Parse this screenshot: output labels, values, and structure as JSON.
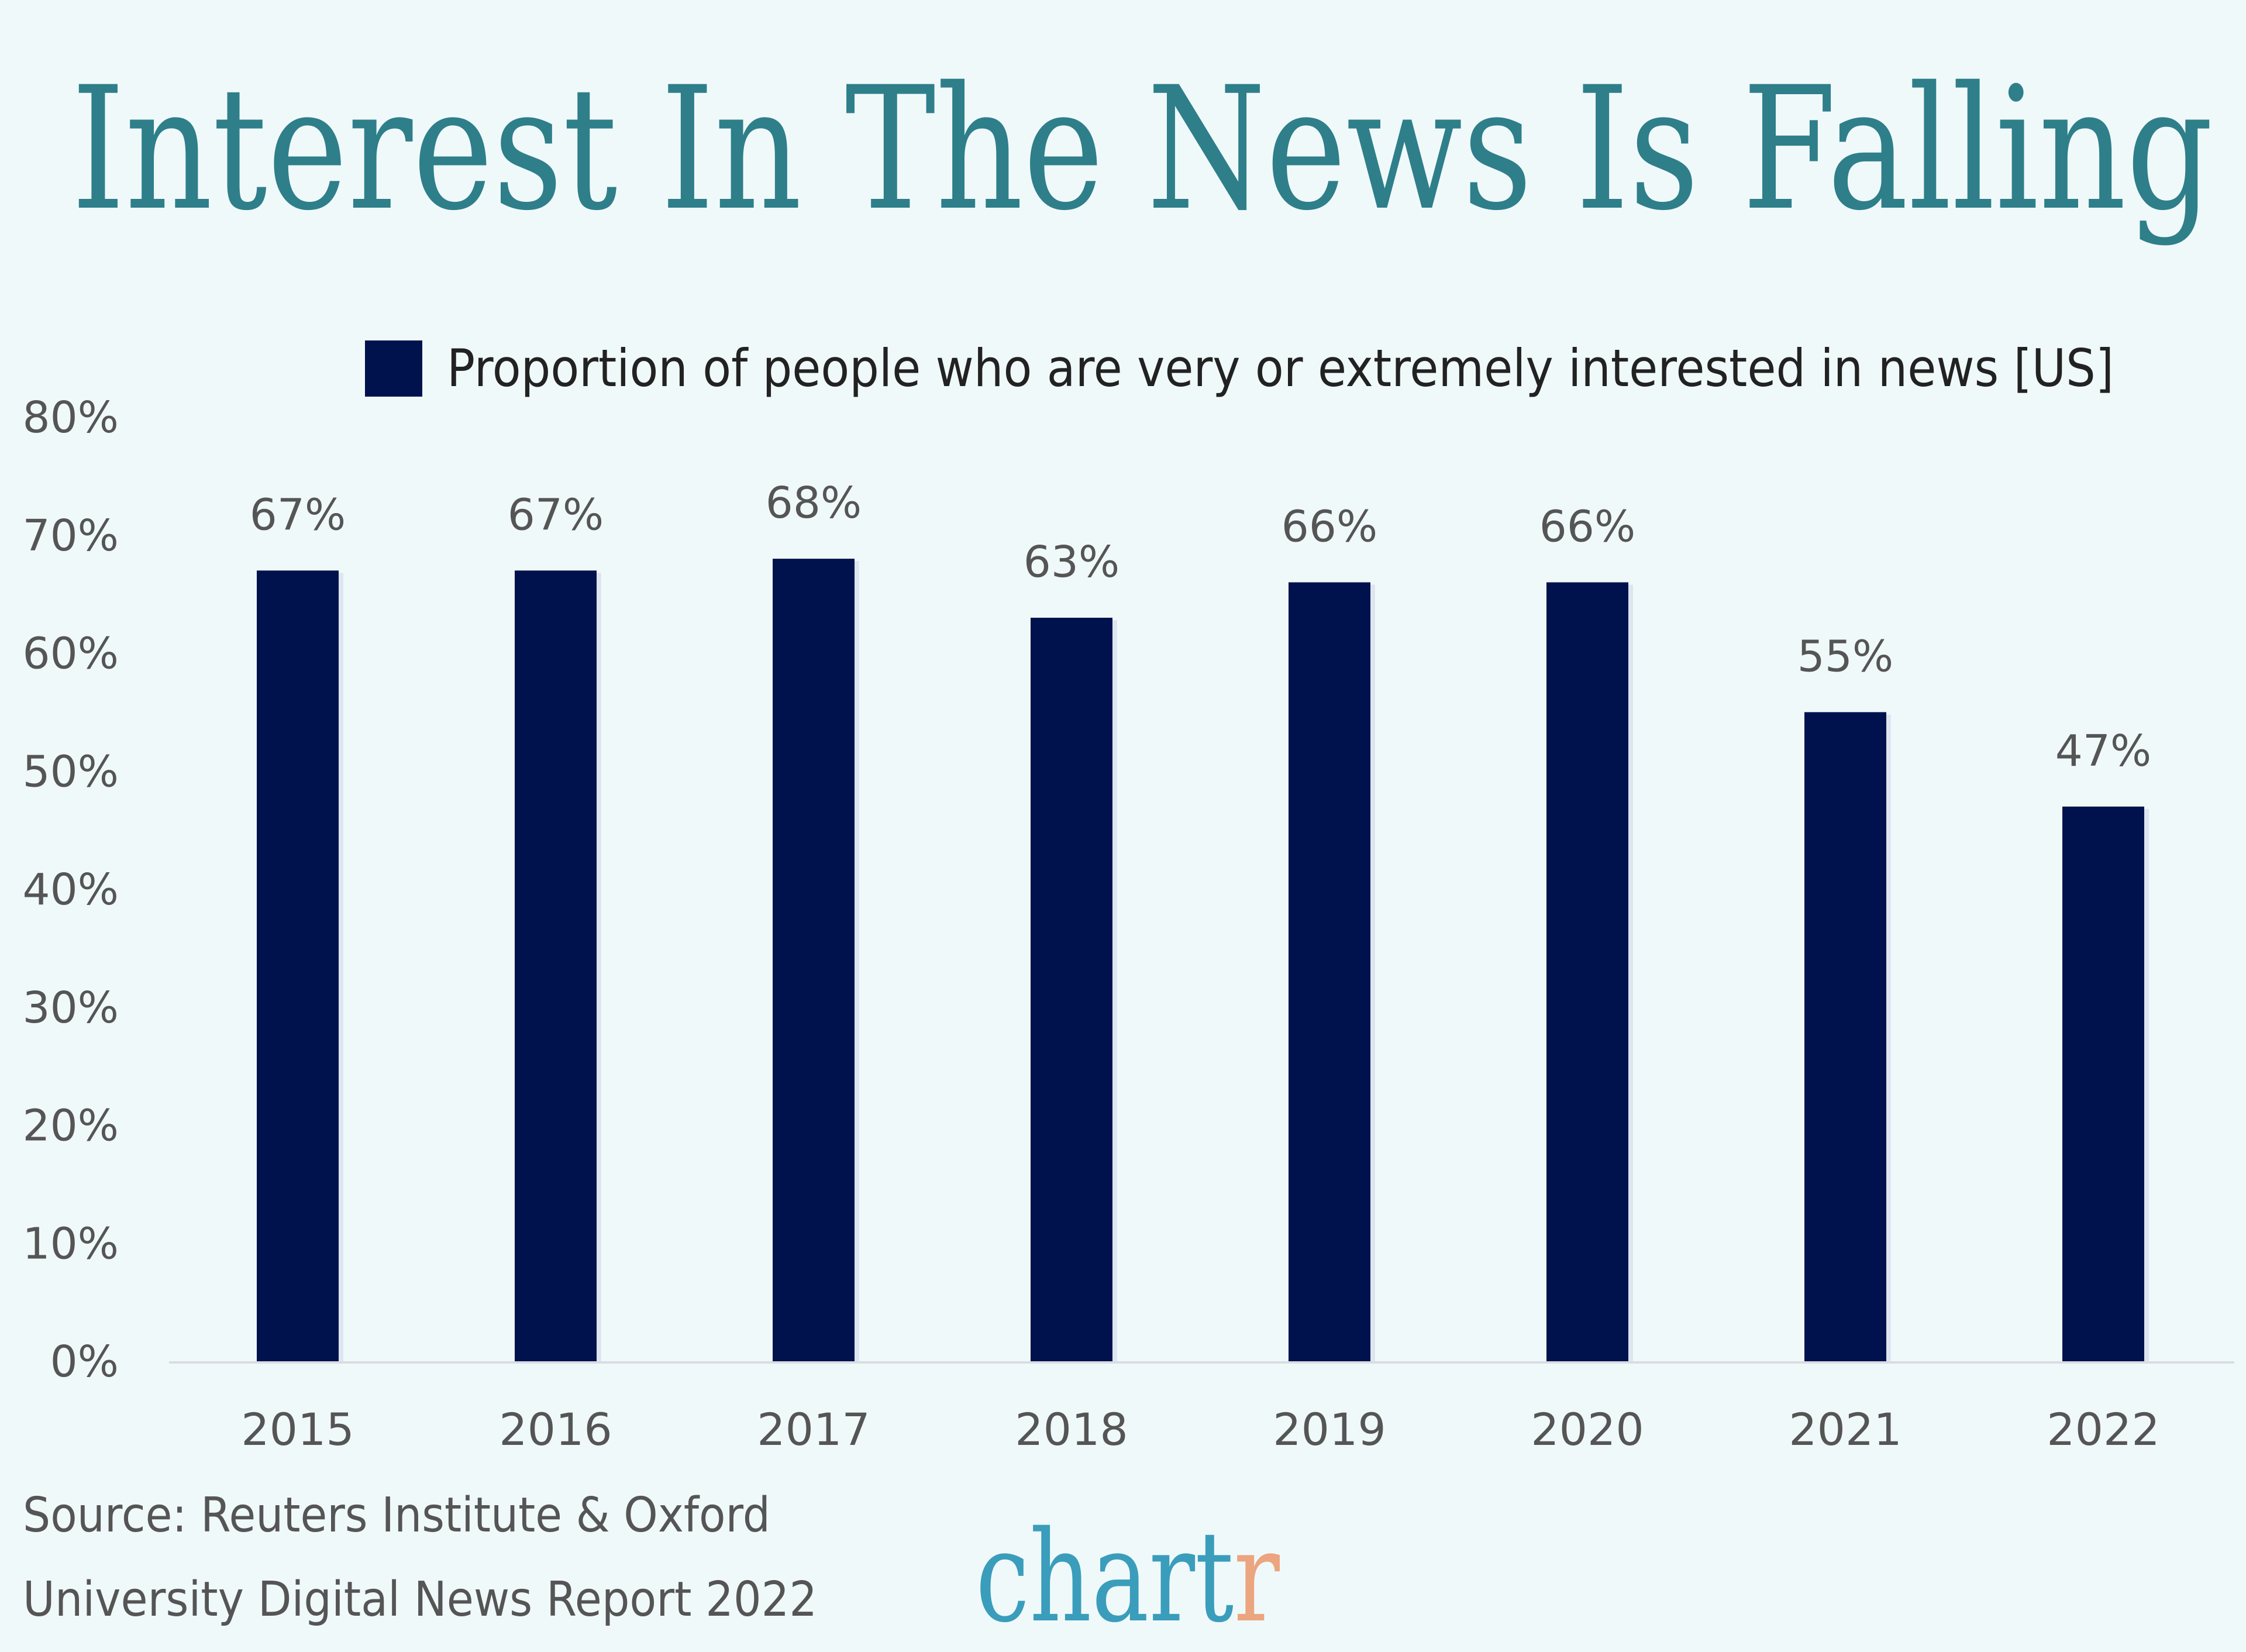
{
  "colors": {
    "background": "#f0f9fa",
    "title": "#2e7f8a",
    "bar": "#00124d",
    "text": "#555555",
    "logo_main": "#3a9dbb",
    "logo_accent": "#eba57f"
  },
  "logo": {
    "text_main": "chart",
    "text_accent": "r"
  },
  "source": {
    "line1": "Source: Reuters Institute & Oxford",
    "line2": "University Digital News Report 2022"
  },
  "chart_data": {
    "type": "bar",
    "title": "Interest In The News Is Falling",
    "legend": {
      "label": "Proportion of people who are very or extremely interested in news [US]",
      "position": "top"
    },
    "categories": [
      "2015",
      "2016",
      "2017",
      "2018",
      "2019",
      "2020",
      "2021",
      "2022"
    ],
    "series": [
      {
        "name": "Proportion of people who are very or extremely interested in news [US]",
        "values": [
          67,
          67,
          68,
          63,
          66,
          66,
          55,
          47
        ]
      }
    ],
    "data_labels": [
      "67%",
      "67%",
      "68%",
      "63%",
      "66%",
      "66%",
      "55%",
      "47%"
    ],
    "yticks": [
      "0%",
      "10%",
      "20%",
      "30%",
      "40%",
      "50%",
      "60%",
      "70%",
      "80%"
    ],
    "ylim": [
      0,
      80
    ],
    "grid": false,
    "xlabel": "",
    "ylabel": ""
  }
}
